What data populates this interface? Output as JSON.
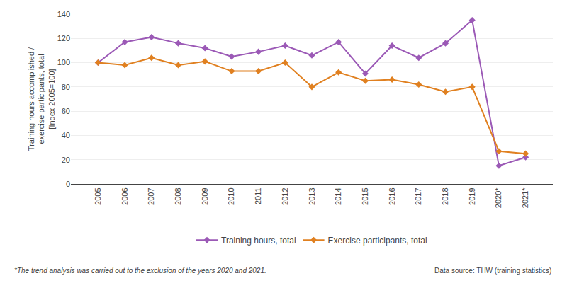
{
  "chart_data": {
    "type": "line",
    "categories": [
      "2005",
      "2006",
      "2007",
      "2008",
      "2009",
      "2010",
      "2011",
      "2012",
      "2013",
      "2014",
      "2015",
      "2016",
      "2017",
      "2018",
      "2019",
      "2020*",
      "2021*"
    ],
    "series": [
      {
        "name": "Training hours, total",
        "color": "#9b59b6",
        "marker": "diamond",
        "values": [
          100,
          117,
          121,
          116,
          112,
          105,
          109,
          114,
          106,
          117,
          91,
          114,
          104,
          116,
          135,
          15,
          22
        ]
      },
      {
        "name": "Exercise participants, total",
        "color": "#e08020",
        "marker": "diamond",
        "values": [
          100,
          98,
          104,
          98,
          101,
          93,
          93,
          100,
          80,
          92,
          85,
          86,
          82,
          76,
          80,
          27,
          25
        ]
      }
    ],
    "ylabel": "Training hours accomplished /\nexercise participants, total\n[Index 2005=100]",
    "ylim": [
      0,
      140
    ],
    "yticks": [
      0,
      20,
      40,
      60,
      80,
      100,
      120,
      140
    ],
    "grid": true,
    "legend": "bottom",
    "annotations": [
      "*The trend analysis was carried out to the exclusion of the years 2020 and 2021.",
      "Data source: THW (training statistics)"
    ]
  }
}
